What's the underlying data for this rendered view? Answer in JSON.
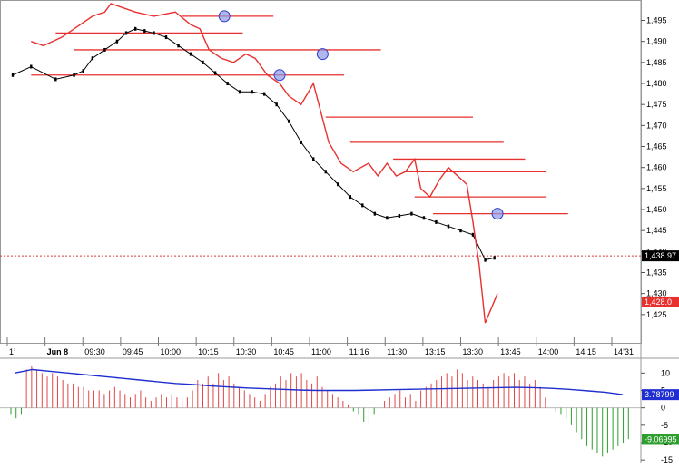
{
  "colors": {
    "price_line": "#e8312f",
    "level_line": "#e8312f",
    "candles": "#000000",
    "current_price_line": "#d93a3a",
    "marker_fill": "#8e99e6",
    "marker_stroke": "#2f3fc9",
    "hist_positive": "#e04646",
    "hist_negative": "#2e9e2e",
    "signal_line": "#1f2fd0",
    "grid": "#d6d6d6"
  },
  "chart_data": [
    {
      "type": "line",
      "title": "",
      "ylim": [
        1420,
        1499
      ],
      "y_ticks": [
        "1,495",
        "1,490",
        "1,485",
        "1,480",
        "1,475",
        "1,470",
        "1,465",
        "1,460",
        "1,455",
        "1,450",
        "1,445",
        "1,440",
        "1,435",
        "1,430",
        "1,425"
      ],
      "x_ticks": [
        "1’",
        "Jun 8",
        "09:30",
        "09:45",
        "10:00",
        "10:15",
        "10:30",
        "10:45",
        "11:00",
        "11:16",
        "11:30",
        "13:15",
        "13:30",
        "13:45",
        "14:00",
        "14:15",
        "14’31"
      ],
      "price_badges": [
        {
          "label": "1,438.97",
          "value": 1438.97,
          "color": "#000000"
        },
        {
          "label": "1,428.0",
          "value": 1428.0,
          "color": "#e8312f"
        }
      ],
      "series": [
        {
          "kind": "black-price-bars",
          "x": [
            0,
            0.6,
            1.4,
            2.0,
            2.3,
            2.6,
            3.0,
            3.4,
            3.7,
            4.0,
            4.3,
            4.6,
            5.0,
            5.4,
            5.8,
            6.2,
            6.6,
            7.0,
            7.4,
            7.8,
            8.2,
            8.6,
            9.0,
            9.4,
            9.8,
            10.2,
            10.6,
            11.0,
            11.4,
            11.8,
            12.2,
            12.6,
            13.0,
            13.4,
            13.8,
            14.2,
            14.6,
            15.0,
            15.4,
            15.7
          ],
          "y": [
            1482,
            1484,
            1481,
            1482,
            1483,
            1486,
            1488,
            1490,
            1492,
            1493,
            1492.5,
            1492,
            1491,
            1489,
            1487,
            1485,
            1482.5,
            1480,
            1478,
            1478,
            1477.5,
            1475,
            1471,
            1466,
            1462,
            1459,
            1456,
            1453,
            1451,
            1449,
            1448,
            1448.5,
            1449,
            1448,
            1447,
            1446,
            1445,
            1444,
            1438,
            1438.5
          ]
        },
        {
          "kind": "red-price-line",
          "x": [
            0.6,
            1.0,
            1.6,
            2.0,
            2.6,
            3.0,
            3.2,
            4.0,
            4.6,
            5.3,
            5.8,
            6.1,
            6.4,
            6.8,
            7.2,
            7.6,
            7.9,
            8.3,
            8.7,
            9.0,
            9.4,
            9.8,
            10.3,
            10.7,
            11.1,
            11.6,
            11.9,
            12.2,
            12.5,
            12.8,
            13.1,
            13.3,
            13.6,
            13.9,
            14.2,
            14.5,
            14.8,
            15.0,
            15.2,
            15.4,
            15.8
          ],
          "y": [
            1490,
            1489,
            1491,
            1493,
            1496,
            1497,
            1499,
            1497,
            1496,
            1497,
            1494,
            1493,
            1488,
            1486,
            1485,
            1487,
            1486,
            1482,
            1480,
            1477,
            1475,
            1480,
            1466,
            1461,
            1459,
            1461,
            1458,
            1461,
            1458,
            1459,
            1462,
            1455,
            1453,
            1457,
            1460,
            1458,
            1456,
            1447,
            1437,
            1423,
            1430
          ]
        }
      ],
      "horizontal_levels": [
        {
          "value": 1496,
          "x_range": [
            5.5,
            8.5
          ]
        },
        {
          "value": 1492,
          "x_range": [
            1.4,
            7.5
          ]
        },
        {
          "value": 1488,
          "x_range": [
            2.0,
            12.0
          ]
        },
        {
          "value": 1482,
          "x_range": [
            0.6,
            10.8
          ]
        },
        {
          "value": 1472,
          "x_range": [
            10.2,
            15.0
          ]
        },
        {
          "value": 1466,
          "x_range": [
            11.0,
            16.0
          ]
        },
        {
          "value": 1462,
          "x_range": [
            12.4,
            16.7
          ]
        },
        {
          "value": 1459,
          "x_range": [
            12.8,
            17.4
          ]
        },
        {
          "value": 1453,
          "x_range": [
            13.1,
            17.4
          ]
        },
        {
          "value": 1449,
          "x_range": [
            13.7,
            18.1
          ]
        }
      ],
      "markers": [
        {
          "x": 6.9,
          "y": 1496
        },
        {
          "x": 8.7,
          "y": 1482
        },
        {
          "x": 10.1,
          "y": 1487
        },
        {
          "x": 15.8,
          "y": 1449
        }
      ],
      "current_price": 1438.97
    },
    {
      "type": "bar",
      "ylim": [
        -16,
        14
      ],
      "y_ticks": [
        "10",
        "5",
        "0",
        "-5",
        "-10",
        "-15"
      ],
      "value_badges": [
        {
          "label": "3.78799",
          "value": 3.78799,
          "color": "#1f2fd0"
        },
        {
          "label": "-9.06995",
          "value": -9.06995,
          "color": "#2e9e2e"
        }
      ],
      "histogram": [
        -2,
        -3,
        -2,
        11,
        12,
        11,
        10,
        9,
        10,
        9,
        8,
        7,
        7,
        6,
        6,
        5,
        5,
        5,
        4,
        5,
        6,
        5,
        4,
        3,
        4,
        5,
        3,
        2,
        3,
        4,
        3,
        4,
        3,
        2,
        3,
        5,
        8,
        7,
        9,
        7,
        10,
        8,
        9,
        7,
        6,
        5,
        4,
        3,
        2,
        4,
        6,
        7,
        9,
        8,
        10,
        9,
        10,
        8,
        7,
        9,
        6,
        5,
        4,
        3,
        2,
        1,
        -1,
        -2,
        -4,
        -5,
        -2,
        0,
        2,
        3,
        4,
        5,
        3,
        4,
        2,
        5,
        6,
        7,
        8,
        9,
        10,
        9,
        11,
        10,
        8,
        9,
        8,
        7,
        6,
        8,
        9,
        10,
        9,
        10,
        8,
        9,
        7,
        8,
        6,
        3,
        0,
        -1,
        -2,
        -3,
        -5,
        -7,
        -9,
        -11,
        -12,
        -13,
        -14,
        -13,
        -12,
        -11,
        -10,
        -9
      ],
      "signal": [
        10,
        11,
        10.5,
        10,
        9.5,
        9,
        8.5,
        8,
        7.5,
        7,
        6.7,
        6.3,
        6,
        5.7,
        5.5,
        5.3,
        5.1,
        5,
        5,
        5,
        5.1,
        5.2,
        5.3,
        5.4,
        5.5,
        5.6,
        5.7,
        5.8,
        5.9,
        5.8,
        5.6,
        5.3,
        4.9,
        4.5,
        3.8
      ]
    }
  ]
}
